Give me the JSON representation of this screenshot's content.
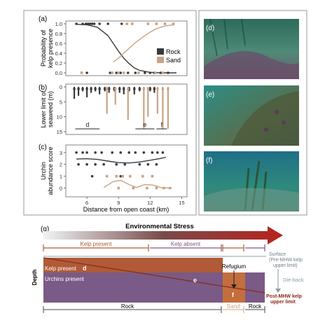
{
  "colors": {
    "rock": "#3a3a3a",
    "sand": "#c9a384",
    "kelp_band": "#b05a37",
    "urchin_band": "#7a5a86",
    "arrow_start": "#e9f1f4",
    "arrow_end": "#b8231e",
    "panel_border": "#9a9a9a",
    "line_present": "#b05a37",
    "line_absent": "#7a5a86"
  },
  "chart_data": [
    {
      "panel": "(a)",
      "type": "scatter",
      "ylabel": "Probability of kelp presence",
      "xlim": [
        4,
        15.5
      ],
      "ylim": [
        0,
        1
      ],
      "yticks": [
        "0.0",
        "0.2",
        "0.4",
        "0.6",
        "0.8",
        "1.0"
      ],
      "legend": {
        "placement": "right",
        "entries": [
          "Rock",
          "Sand"
        ]
      },
      "series": [
        {
          "name": "Rock",
          "points": [
            [
              5.0,
              1
            ],
            [
              5.6,
              1
            ],
            [
              5.9,
              1
            ],
            [
              6.1,
              1
            ],
            [
              6.3,
              1
            ],
            [
              6.5,
              1
            ],
            [
              6.7,
              1
            ],
            [
              7.2,
              1
            ],
            [
              8.0,
              1
            ],
            [
              9.3,
              1
            ],
            [
              6.0,
              0
            ],
            [
              8.2,
              0
            ],
            [
              8.8,
              0
            ],
            [
              9.2,
              0
            ],
            [
              9.9,
              0
            ],
            [
              10.6,
              0
            ],
            [
              11.5,
              0
            ],
            [
              12.0,
              0
            ],
            [
              12.4,
              0
            ],
            [
              13.0,
              0
            ],
            [
              13.7,
              0
            ]
          ],
          "fit": [
            [
              5,
              0.99
            ],
            [
              6,
              0.98
            ],
            [
              7,
              0.93
            ],
            [
              8,
              0.76
            ],
            [
              8.5,
              0.6
            ],
            [
              9,
              0.44
            ],
            [
              9.5,
              0.3
            ],
            [
              10,
              0.19
            ],
            [
              10.5,
              0.1
            ],
            [
              11,
              0.05
            ],
            [
              12,
              0.01
            ],
            [
              13,
              0.0
            ],
            [
              14.5,
              0.0
            ]
          ]
        },
        {
          "name": "Sand",
          "points": [
            [
              9.8,
              1
            ],
            [
              10.3,
              1
            ],
            [
              11.8,
              1
            ],
            [
              12.6,
              1
            ],
            [
              13.4,
              1
            ],
            [
              14.2,
              1
            ],
            [
              5.5,
              0
            ],
            [
              8.4,
              0
            ],
            [
              9.0,
              0
            ],
            [
              9.5,
              0
            ],
            [
              10.9,
              0
            ],
            [
              12.5,
              0
            ],
            [
              13.2,
              0
            ]
          ],
          "fit": [
            [
              8.5,
              0.22
            ],
            [
              9,
              0.3
            ],
            [
              9.5,
              0.4
            ],
            [
              10,
              0.5
            ],
            [
              10.5,
              0.6
            ],
            [
              11,
              0.68
            ],
            [
              11.5,
              0.76
            ],
            [
              12,
              0.83
            ],
            [
              12.5,
              0.89
            ],
            [
              13,
              0.93
            ],
            [
              13.5,
              0.96
            ],
            [
              14.3,
              0.98
            ]
          ]
        }
      ]
    },
    {
      "panel": "(b)",
      "type": "bar",
      "ylabel": "Lower limit of seaweed (m)",
      "xlim": [
        4,
        15.5
      ],
      "ylim": [
        0,
        15
      ],
      "y_inverted": true,
      "yticks": [
        "0",
        "5",
        "10",
        "15"
      ],
      "series": [
        {
          "name": "Rock",
          "x": [
            4.8,
            5.2,
            5.6,
            6.0,
            6.4,
            6.8,
            7.2,
            7.7,
            8.1,
            8.6,
            9.1,
            9.5,
            10.0,
            10.5,
            11.0,
            12.0,
            12.4
          ],
          "y": [
            4,
            3,
            1.5,
            3.5,
            2,
            1.5,
            2.5,
            1.5,
            2,
            1.5,
            2,
            2.5,
            1.5,
            2.5,
            1.5,
            1.5,
            2
          ]
        },
        {
          "name": "Sand",
          "x": [
            7.9,
            8.7,
            9.9,
            11.4,
            11.8,
            12.7,
            13.2,
            13.7
          ],
          "y": [
            9,
            6,
            11,
            14,
            10,
            9,
            14,
            14
          ]
        }
      ],
      "annotations": [
        {
          "text": "d",
          "x_from": 4.9,
          "x_to": 7.2
        },
        {
          "text": "e",
          "x_from": 10.6,
          "x_to": 12.4
        },
        {
          "text": "f",
          "x_from": 12.6,
          "x_to": 13.6
        }
      ]
    },
    {
      "panel": "(c)",
      "type": "scatter",
      "ylabel": "Urchin abundance score",
      "xlabel": "Distance from open coast (km)",
      "xlim": [
        4,
        15.5
      ],
      "ylim": [
        -0.5,
        3.4
      ],
      "xticks": [
        "6",
        "9",
        "12",
        "15"
      ],
      "yticks": [
        "0",
        "1",
        "2",
        "3"
      ],
      "series": [
        {
          "name": "Rock",
          "points": [
            [
              5.0,
              3
            ],
            [
              5.6,
              3
            ],
            [
              6.0,
              3
            ],
            [
              6.8,
              3
            ],
            [
              7.4,
              3
            ],
            [
              8.4,
              3
            ],
            [
              9.2,
              3
            ],
            [
              10.0,
              3
            ],
            [
              10.6,
              3
            ],
            [
              11.4,
              3
            ],
            [
              12.2,
              3
            ],
            [
              12.7,
              3
            ],
            [
              13.2,
              3
            ],
            [
              5.2,
              2
            ],
            [
              6.0,
              2
            ],
            [
              6.8,
              2
            ],
            [
              7.6,
              2
            ],
            [
              8.8,
              2
            ],
            [
              9.6,
              2
            ],
            [
              11.0,
              2
            ],
            [
              11.8,
              2
            ],
            [
              12.6,
              2
            ],
            [
              6.5,
              1
            ],
            [
              9.2,
              1
            ]
          ],
          "fit": [
            [
              5,
              2.45
            ],
            [
              6,
              2.48
            ],
            [
              7,
              2.42
            ],
            [
              8,
              2.28
            ],
            [
              9,
              2.15
            ],
            [
              10,
              2.12
            ],
            [
              11,
              2.2
            ],
            [
              12,
              2.35
            ],
            [
              13,
              2.5
            ],
            [
              13.5,
              2.6
            ]
          ]
        },
        {
          "name": "Sand",
          "points": [
            [
              7.9,
              1
            ],
            [
              8.8,
              1
            ],
            [
              9.4,
              1
            ],
            [
              10.1,
              1
            ],
            [
              11.3,
              1
            ],
            [
              12.2,
              1
            ],
            [
              9.0,
              0
            ],
            [
              10.4,
              0
            ],
            [
              11.7,
              0
            ],
            [
              12.6,
              0
            ],
            [
              13.3,
              0
            ],
            [
              13.9,
              0
            ]
          ],
          "fit": [
            [
              7.6,
              0.05
            ],
            [
              8.5,
              0.55
            ],
            [
              9.2,
              0.65
            ],
            [
              10,
              0.3
            ],
            [
              10.7,
              0.05
            ],
            [
              11.5,
              0.3
            ],
            [
              12.3,
              0.25
            ],
            [
              13,
              0.05
            ],
            [
              13.8,
              0.0
            ]
          ]
        }
      ]
    }
  ],
  "panel_labels": {
    "a": "(a)",
    "b": "(b)",
    "c": "(c)",
    "d": "(d)",
    "e": "(e)",
    "f": "(f)",
    "g": "(g)"
  },
  "legend_labels": {
    "rock": "Rock",
    "sand": "Sand"
  },
  "axes": {
    "a_ylabel_1": "Probability of",
    "a_ylabel_2": "kelp presence",
    "b_ylabel_1": "Lower limit of",
    "b_ylabel_2": "seaweed (m)",
    "c_ylabel_1": "Urchin",
    "c_ylabel_2": "abundance score",
    "xlabel": "Distance from open coast (km)"
  },
  "photos": {
    "d": {
      "description_icon": "kelp-canopy-photo"
    },
    "e": {
      "description_icon": "urchin-barren-photo"
    },
    "f": {
      "description_icon": "kelp-on-sand-photo"
    }
  },
  "diagram": {
    "arrow_label": "Environmental Stress",
    "kelp_present_top": "Kelp present",
    "kelp_absent_top": "Kelp absent",
    "surface_label": "Surface",
    "surface_label_2": "(Pre-MHW kelp",
    "surface_label_3": "upper limit)",
    "kelp_present_band": "Kelp present",
    "urchins_present_band": "Urchins present",
    "depth_label": "Depth",
    "zone_d": "d",
    "zone_e": "e",
    "zone_f": "f",
    "refugium": "Refugium",
    "dieback": "Die-back",
    "post_mhw_1": "Post-MHW kelp",
    "post_mhw_2": "upper limit",
    "substrate_rock_1": "Rock",
    "substrate_sand": "Sand",
    "substrate_rock_2": "Rock"
  }
}
